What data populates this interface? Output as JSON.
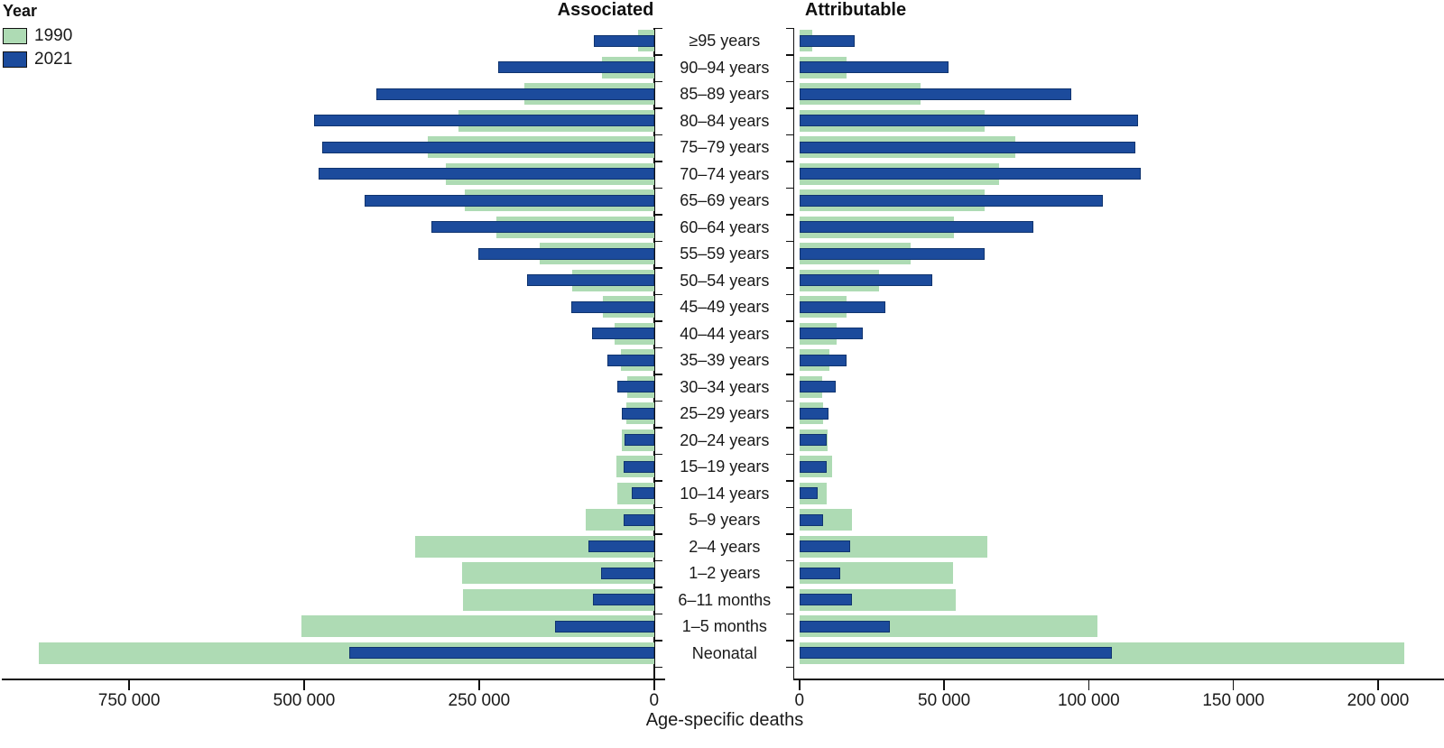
{
  "chart_data": {
    "type": "bar",
    "variant": "diverging-horizontal-pyramid",
    "legend": {
      "title": "Year",
      "items": [
        {
          "label": "1990",
          "color": "#aedbb4"
        },
        {
          "label": "2021",
          "color": "#1c4b9c"
        }
      ]
    },
    "xlabel": "Age-specific deaths",
    "categories": [
      "≥95 years",
      "90–94 years",
      "85–89 years",
      "80–84 years",
      "75–79 years",
      "70–74 years",
      "65–69 years",
      "60–64 years",
      "55–59 years",
      "50–54 years",
      "45–49 years",
      "40–44 years",
      "35–39 years",
      "30–34 years",
      "25–29 years",
      "20–24 years",
      "15–19 years",
      "10–14 years",
      "5–9 years",
      "2–4 years",
      "1–2 years",
      "6–11 months",
      "1–5 months",
      "Neonatal"
    ],
    "panels": [
      {
        "title": "Associated",
        "side": "left",
        "axis_range": [
          0,
          940000
        ],
        "ticks": [
          {
            "value": 750000,
            "label": "750 000"
          },
          {
            "value": 500000,
            "label": "500 000"
          },
          {
            "value": 250000,
            "label": "250 000"
          },
          {
            "value": 0,
            "label": "0"
          }
        ],
        "series": [
          {
            "name": "1990",
            "values": [
              23000,
              75000,
              186000,
              279000,
              323000,
              297000,
              270000,
              226000,
              163000,
              117000,
              73000,
              57000,
              48000,
              38500,
              39500,
              46500,
              54500,
              52500,
              98000,
              341000,
              274000,
              273000,
              504000,
              879000
            ]
          },
          {
            "name": "2021",
            "values": [
              86000,
              223000,
              397000,
              486000,
              474000,
              480000,
              414000,
              318000,
              251000,
              181000,
              118000,
              89000,
              66500,
              53000,
              46500,
              42000,
              43000,
              32000,
              43000,
              94500,
              75500,
              88000,
              141000,
              435000
            ]
          }
        ]
      },
      {
        "title": "Attributable",
        "side": "right",
        "axis_range": [
          0,
          211000
        ],
        "ticks": [
          {
            "value": 0,
            "label": "0"
          },
          {
            "value": 50000,
            "label": "50 000"
          },
          {
            "value": 100000,
            "label": "100 000"
          },
          {
            "value": 150000,
            "label": "150 000"
          },
          {
            "value": 200000,
            "label": "200 000"
          }
        ],
        "series": [
          {
            "name": "1990",
            "values": [
              4300,
              16300,
              42000,
              64000,
              74500,
              69000,
              64000,
              53500,
              38500,
              27500,
              16300,
              12900,
              10400,
              8000,
              8200,
              9700,
              11300,
              9500,
              18300,
              65000,
              53000,
              54000,
              103000,
              209000
            ]
          },
          {
            "name": "2021",
            "values": [
              19000,
              51500,
              94000,
              117000,
              116000,
              118000,
              105000,
              81000,
              64000,
              46000,
              29700,
              22000,
              16300,
              12600,
              10200,
              9500,
              9400,
              6300,
              8300,
              17600,
              14200,
              18300,
              31200,
              108000
            ]
          }
        ]
      }
    ],
    "colors": {
      "1990": "#aedbb4",
      "2021": "#1c4b9c"
    }
  }
}
